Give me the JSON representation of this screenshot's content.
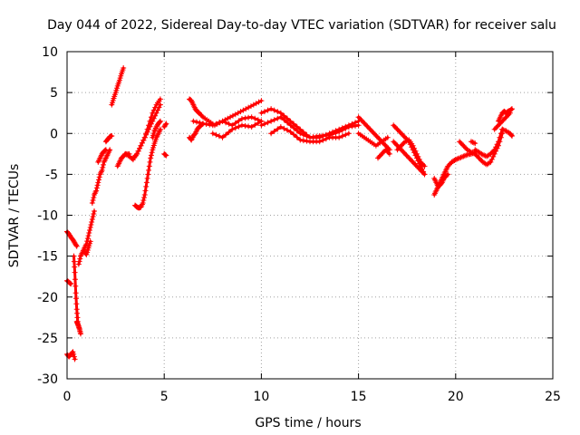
{
  "chart_data": {
    "type": "scatter",
    "title": "Day 044 of 2022, Sidereal Day-to-day VTEC variation (SDTVAR) for receiver salu",
    "xlabel": "GPS time / hours",
    "ylabel": "SDTVAR / TECUs",
    "xlim": [
      0,
      25
    ],
    "ylim": [
      -30,
      10
    ],
    "xticks": [
      0,
      5,
      10,
      15,
      20,
      25
    ],
    "yticks": [
      -30,
      -25,
      -20,
      -15,
      -10,
      -5,
      0,
      5,
      10
    ],
    "grid": true,
    "marker": "+",
    "colors": {
      "series": "#ff0000",
      "grid": "#a0a0a0",
      "axis": "#000000"
    },
    "series": [
      {
        "name": "SDTVAR",
        "segments": [
          {
            "x": [
              0.0,
              0.1,
              0.2
            ],
            "y": [
              -18.0,
              -18.2,
              -18.4
            ]
          },
          {
            "x": [
              0.0,
              0.1,
              0.2,
              0.3,
              0.4
            ],
            "y": [
              -27.0,
              -27.3,
              -27.0,
              -26.7,
              -27.6
            ]
          },
          {
            "x": [
              0.0,
              0.1,
              0.2,
              0.3,
              0.4,
              0.5
            ],
            "y": [
              -12.0,
              -12.3,
              -12.7,
              -13.0,
              -13.4,
              -13.8
            ]
          },
          {
            "x": [
              0.35,
              0.4,
              0.45,
              0.5,
              0.55
            ],
            "y": [
              -15.0,
              -17.0,
              -19.5,
              -21.5,
              -23.0
            ]
          },
          {
            "x": [
              0.5,
              0.55,
              0.6,
              0.65,
              0.7
            ],
            "y": [
              -23.0,
              -23.3,
              -23.6,
              -24.0,
              -24.5
            ]
          },
          {
            "x": [
              0.6,
              0.7,
              0.8,
              0.9,
              1.0,
              1.1,
              1.2,
              1.3,
              1.4
            ],
            "y": [
              -16.0,
              -15.0,
              -14.5,
              -14.0,
              -13.5,
              -12.5,
              -11.5,
              -10.5,
              -9.5
            ]
          },
          {
            "x": [
              0.9,
              1.0,
              1.1,
              1.2
            ],
            "y": [
              -14.5,
              -14.8,
              -14.0,
              -13.2
            ]
          },
          {
            "x": [
              1.3,
              1.4,
              1.5,
              1.6,
              1.7,
              1.8,
              1.9,
              2.0,
              2.1,
              2.2
            ],
            "y": [
              -8.5,
              -7.5,
              -7.0,
              -6.0,
              -5.0,
              -4.5,
              -3.5,
              -3.0,
              -2.5,
              -2.0
            ]
          },
          {
            "x": [
              1.6,
              1.7,
              1.8,
              1.9,
              2.0
            ],
            "y": [
              -3.5,
              -3.0,
              -2.5,
              -2.2,
              -2.0
            ]
          },
          {
            "x": [
              2.0,
              2.1,
              2.2,
              2.3
            ],
            "y": [
              -1.0,
              -0.7,
              -0.4,
              -0.3
            ]
          },
          {
            "x": [
              2.3,
              2.4,
              2.5,
              2.6,
              2.7,
              2.8,
              2.9
            ],
            "y": [
              3.5,
              4.3,
              5.0,
              5.8,
              6.5,
              7.3,
              8.0
            ]
          },
          {
            "x": [
              2.6,
              2.7,
              2.8,
              2.9,
              3.0,
              3.2
            ],
            "y": [
              -4.0,
              -3.5,
              -3.0,
              -2.8,
              -2.5,
              -2.5
            ]
          },
          {
            "x": [
              3.0,
              3.2,
              3.4,
              3.6,
              3.8,
              4.0,
              4.2,
              4.4,
              4.6,
              4.8
            ],
            "y": [
              -2.5,
              -2.8,
              -3.2,
              -2.5,
              -1.5,
              -0.5,
              0.5,
              1.5,
              2.5,
              3.5
            ]
          },
          {
            "x": [
              3.4,
              3.6,
              3.8,
              4.0,
              4.2,
              4.4,
              4.6,
              4.8
            ],
            "y": [
              -3.0,
              -2.5,
              -1.5,
              -0.5,
              1.0,
              2.5,
              3.5,
              4.2
            ]
          },
          {
            "x": [
              3.5,
              3.6,
              3.7,
              3.8,
              3.9,
              4.0,
              4.1,
              4.2,
              4.3,
              4.4,
              4.5,
              4.6,
              4.7,
              4.8
            ],
            "y": [
              -8.8,
              -9.0,
              -9.1,
              -9.0,
              -8.5,
              -7.5,
              -6.0,
              -4.5,
              -3.0,
              -2.0,
              -1.2,
              -0.5,
              0.0,
              0.5
            ]
          },
          {
            "x": [
              4.4,
              4.5,
              4.6,
              4.7,
              4.8
            ],
            "y": [
              -0.5,
              0.3,
              0.8,
              1.2,
              1.5
            ]
          },
          {
            "x": [
              5.0,
              5.1
            ],
            "y": [
              -2.5,
              -2.7
            ]
          },
          {
            "x": [
              5.0,
              5.1
            ],
            "y": [
              0.8,
              1.2
            ]
          },
          {
            "x": [
              6.3,
              6.4,
              6.5,
              6.6,
              6.7,
              6.8,
              6.9,
              7.0
            ],
            "y": [
              -0.5,
              -0.8,
              -0.3,
              0.0,
              0.5,
              0.8,
              1.0,
              1.2
            ]
          },
          {
            "x": [
              6.3,
              6.4,
              6.5,
              6.6,
              6.7,
              6.8
            ],
            "y": [
              4.2,
              4.0,
              3.5,
              3.0,
              2.7,
              2.5
            ]
          },
          {
            "x": [
              6.8,
              7.0,
              7.3,
              7.6,
              8.0,
              8.4,
              8.8,
              9.2,
              9.6,
              10.0
            ],
            "y": [
              2.5,
              2.0,
              1.5,
              1.0,
              1.5,
              2.0,
              2.5,
              3.0,
              3.5,
              4.0
            ]
          },
          {
            "x": [
              6.5,
              7.0,
              7.5,
              8.0,
              8.5,
              9.0,
              9.5,
              10.0
            ],
            "y": [
              1.5,
              1.2,
              1.0,
              1.5,
              1.0,
              1.8,
              2.0,
              1.5
            ]
          },
          {
            "x": [
              7.5,
              8.0,
              8.5,
              9.0,
              9.5,
              10.0
            ],
            "y": [
              0.0,
              -0.5,
              0.5,
              1.0,
              0.8,
              1.5
            ]
          },
          {
            "x": [
              10.0,
              10.5,
              11.0,
              11.5,
              12.0,
              12.5,
              13.0,
              13.5,
              14.0,
              14.5,
              15.0
            ],
            "y": [
              2.5,
              3.0,
              2.5,
              1.5,
              0.5,
              -0.5,
              -0.5,
              0.0,
              0.5,
              1.0,
              1.5
            ]
          },
          {
            "x": [
              10.0,
              10.5,
              11.0,
              11.5,
              12.0,
              12.5,
              13.0,
              13.5,
              14.0,
              14.5,
              15.0
            ],
            "y": [
              1.0,
              1.5,
              2.0,
              1.0,
              0.0,
              -0.5,
              -0.3,
              -0.2,
              0.2,
              0.8,
              1.0
            ]
          },
          {
            "x": [
              10.5,
              11.0,
              11.5,
              12.0,
              12.5,
              13.0,
              13.5,
              14.0,
              14.5
            ],
            "y": [
              0.0,
              0.8,
              0.2,
              -0.8,
              -1.0,
              -1.0,
              -0.5,
              -0.5,
              0.0
            ]
          },
          {
            "x": [
              15.0,
              15.2,
              15.4,
              15.6,
              15.8,
              16.0,
              16.2,
              16.4,
              16.6
            ],
            "y": [
              2.0,
              1.5,
              1.0,
              0.5,
              0.0,
              -0.5,
              -1.0,
              -1.5,
              -2.0
            ]
          },
          {
            "x": [
              15.0,
              15.3,
              15.6,
              15.9,
              16.2,
              16.5
            ],
            "y": [
              0.0,
              -0.5,
              -1.0,
              -1.5,
              -1.0,
              -0.5
            ]
          },
          {
            "x": [
              16.0,
              16.2,
              16.4,
              16.6
            ],
            "y": [
              -3.0,
              -2.5,
              -2.0,
              -2.5
            ]
          },
          {
            "x": [
              16.8,
              17.0,
              17.2,
              17.4,
              17.6,
              17.8,
              18.0,
              18.2,
              18.4
            ],
            "y": [
              1.0,
              0.5,
              0.0,
              -0.5,
              -1.0,
              -2.0,
              -3.0,
              -4.0,
              -5.0
            ]
          },
          {
            "x": [
              16.8,
              17.0,
              17.2,
              17.4,
              17.6,
              17.8,
              18.0,
              18.2,
              18.4
            ],
            "y": [
              -1.0,
              -1.5,
              -2.0,
              -2.5,
              -3.0,
              -3.5,
              -4.0,
              -4.5,
              -5.0
            ]
          },
          {
            "x": [
              17.0,
              17.2,
              17.4,
              17.6,
              17.8,
              18.0,
              18.2,
              18.4
            ],
            "y": [
              -2.0,
              -1.5,
              -1.0,
              -0.8,
              -1.5,
              -2.5,
              -3.5,
              -4.0
            ]
          },
          {
            "x": [
              18.9,
              19.0,
              19.1,
              19.2,
              19.3,
              19.4,
              19.5,
              19.6,
              19.8,
              20.0
            ],
            "y": [
              -7.5,
              -7.0,
              -6.5,
              -6.0,
              -5.5,
              -5.0,
              -4.5,
              -4.0,
              -3.5,
              -3.2
            ]
          },
          {
            "x": [
              18.9,
              19.0,
              19.1,
              19.2,
              19.3,
              19.4,
              19.6
            ],
            "y": [
              -5.5,
              -6.0,
              -6.5,
              -6.3,
              -6.0,
              -5.5,
              -5.0
            ]
          },
          {
            "x": [
              19.8,
              20.0,
              20.2,
              20.4,
              20.6,
              20.8,
              21.0
            ],
            "y": [
              -3.5,
              -3.2,
              -3.0,
              -2.8,
              -2.6,
              -2.5,
              -2.3
            ]
          },
          {
            "x": [
              20.2,
              20.4,
              20.6,
              20.8,
              21.0
            ],
            "y": [
              -1.0,
              -1.5,
              -2.0,
              -2.3,
              -2.5
            ]
          },
          {
            "x": [
              20.8,
              21.0
            ],
            "y": [
              -1.0,
              -1.2
            ]
          },
          {
            "x": [
              21.0,
              21.2,
              21.4,
              21.6,
              21.8,
              22.0,
              22.2,
              22.4
            ],
            "y": [
              -2.5,
              -3.0,
              -3.5,
              -3.8,
              -3.5,
              -2.5,
              -1.5,
              0.0
            ]
          },
          {
            "x": [
              21.0,
              21.2,
              21.4,
              21.6,
              21.8,
              22.0,
              22.2,
              22.4
            ],
            "y": [
              -2.0,
              -2.3,
              -2.6,
              -2.8,
              -2.5,
              -2.0,
              -1.0,
              0.5
            ]
          },
          {
            "x": [
              22.2,
              22.3,
              22.4,
              22.5,
              22.6,
              22.7,
              22.8,
              22.9
            ],
            "y": [
              1.5,
              2.0,
              2.5,
              2.7,
              2.5,
              2.7,
              2.8,
              3.0
            ]
          },
          {
            "x": [
              22.0,
              22.2,
              22.4,
              22.6,
              22.8
            ],
            "y": [
              0.5,
              1.0,
              1.5,
              2.0,
              2.5
            ]
          },
          {
            "x": [
              22.4,
              22.6,
              22.8,
              22.9
            ],
            "y": [
              0.5,
              0.3,
              0.0,
              -0.3
            ]
          }
        ]
      }
    ]
  }
}
